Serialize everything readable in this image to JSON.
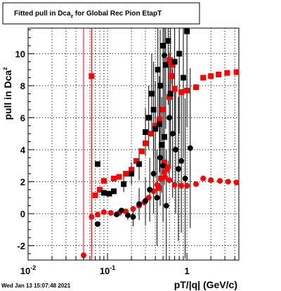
{
  "chart_data": {
    "type": "scatter",
    "title": "Fitted pull in Dca",
    "title_sub": "z",
    "title_rest": " for Global Rec Pion EtapT",
    "xlabel": "pT/|q| (GeV/c)",
    "ylabel": "pull in Dca",
    "ylabel_sub": "z",
    "x_scale": "log",
    "xlim": [
      0.01,
      4.5
    ],
    "ylim": [
      -2.9,
      11.6
    ],
    "x_ticks": [
      {
        "value": 0.01,
        "base": "10",
        "exp": "-2"
      },
      {
        "value": 0.1,
        "base": "10",
        "exp": "-1"
      },
      {
        "value": 1,
        "base": "1",
        "exp": ""
      }
    ],
    "y_ticks": [
      -2,
      0,
      2,
      4,
      6,
      8,
      10
    ],
    "grid": true,
    "date_stamp": "Wed Jan 13 15:07:48 2021",
    "colors": {
      "black_series": "#000000",
      "red_series": "#ff0000",
      "grid": "#000000"
    },
    "series": [
      {
        "marker": "square",
        "color": "#ff0000",
        "points": [
          {
            "x": 0.063,
            "y": 8.6,
            "err": 11
          },
          {
            "x": 0.07,
            "y": 1.15,
            "err": 0
          },
          {
            "x": 0.08,
            "y": 1.5,
            "err": 0
          },
          {
            "x": 0.09,
            "y": 2.05,
            "err": 0
          },
          {
            "x": 0.12,
            "y": 2.2,
            "err": 0
          },
          {
            "x": 0.14,
            "y": 2.3,
            "err": 0
          },
          {
            "x": 0.17,
            "y": 2.5,
            "err": 0
          },
          {
            "x": 0.2,
            "y": 2.75,
            "err": 0
          },
          {
            "x": 0.23,
            "y": 3.3,
            "err": 0
          },
          {
            "x": 0.27,
            "y": 3.9,
            "err": 0
          },
          {
            "x": 0.3,
            "y": 4.4,
            "err": 0
          },
          {
            "x": 0.35,
            "y": 5.0,
            "err": 0
          },
          {
            "x": 0.4,
            "y": 5.5,
            "err": 0
          },
          {
            "x": 0.45,
            "y": 5.9,
            "err": 0
          },
          {
            "x": 0.5,
            "y": 6.5,
            "err": 0
          },
          {
            "x": 0.6,
            "y": 7.3,
            "err": 0
          },
          {
            "x": 0.7,
            "y": 7.8,
            "err": 0
          },
          {
            "x": 0.85,
            "y": 7.6,
            "err": 0
          },
          {
            "x": 1.0,
            "y": 7.7,
            "err": 0
          },
          {
            "x": 1.3,
            "y": 7.9,
            "err": 0
          },
          {
            "x": 1.6,
            "y": 8.5,
            "err": 0
          },
          {
            "x": 2.0,
            "y": 8.6,
            "err": 0
          },
          {
            "x": 2.5,
            "y": 8.7,
            "err": 0
          },
          {
            "x": 3.2,
            "y": 8.8,
            "err": 0
          },
          {
            "x": 4.2,
            "y": 8.85,
            "err": 0
          },
          {
            "x": 0.44,
            "y": 1.6,
            "err": 0
          },
          {
            "x": 0.47,
            "y": 2.2,
            "err": 0
          },
          {
            "x": 0.52,
            "y": 3.2,
            "err": 0
          },
          {
            "x": 0.56,
            "y": 2.8,
            "err": 0
          },
          {
            "x": 0.64,
            "y": 8.6,
            "err": 0.5
          },
          {
            "x": 0.6,
            "y": 9.6,
            "err": 0.5
          },
          {
            "x": 0.66,
            "y": 9.3,
            "err": 0.5
          }
        ]
      },
      {
        "marker": "circle",
        "color": "#ff0000",
        "points": [
          {
            "x": 0.05,
            "y": -2.6,
            "err": 0
          },
          {
            "x": 0.063,
            "y": -0.2,
            "err": 0
          },
          {
            "x": 0.075,
            "y": -0.05,
            "err": 0
          },
          {
            "x": 0.09,
            "y": 0.1,
            "err": 0
          },
          {
            "x": 0.11,
            "y": 0.05,
            "err": 0
          },
          {
            "x": 0.14,
            "y": 0.05,
            "err": 0
          },
          {
            "x": 0.17,
            "y": 0.15,
            "err": 0
          },
          {
            "x": 0.21,
            "y": 0.3,
            "err": 0
          },
          {
            "x": 0.25,
            "y": 0.5,
            "err": 0
          },
          {
            "x": 0.29,
            "y": 0.7,
            "err": 0
          },
          {
            "x": 0.33,
            "y": 1.0,
            "err": 0
          },
          {
            "x": 0.38,
            "y": 1.4,
            "err": 0
          },
          {
            "x": 0.42,
            "y": 1.8,
            "err": 0
          },
          {
            "x": 0.47,
            "y": 2.2,
            "err": 0
          },
          {
            "x": 0.53,
            "y": 2.3,
            "err": 0
          },
          {
            "x": 0.6,
            "y": 2.1,
            "err": 0
          },
          {
            "x": 0.7,
            "y": 1.8,
            "err": 0
          },
          {
            "x": 0.85,
            "y": 1.75,
            "err": 0
          },
          {
            "x": 1.0,
            "y": 1.75,
            "err": 0
          },
          {
            "x": 1.3,
            "y": 1.85,
            "err": 0
          },
          {
            "x": 1.6,
            "y": 2.2,
            "err": 0
          },
          {
            "x": 2.0,
            "y": 2.1,
            "err": 0
          },
          {
            "x": 2.6,
            "y": 2.05,
            "err": 0
          },
          {
            "x": 3.3,
            "y": 2.0,
            "err": 0
          },
          {
            "x": 4.2,
            "y": 1.95,
            "err": 0
          },
          {
            "x": 0.52,
            "y": 2.6,
            "err": 0.4
          },
          {
            "x": 0.58,
            "y": 2.9,
            "err": 0.4
          }
        ]
      },
      {
        "marker": "square",
        "color": "#000000",
        "points": [
          {
            "x": 0.075,
            "y": 3.1,
            "err": 0
          },
          {
            "x": 0.09,
            "y": 1.3,
            "err": 0
          },
          {
            "x": 0.105,
            "y": 1.25,
            "err": 0
          },
          {
            "x": 0.12,
            "y": 1.4,
            "err": 0
          },
          {
            "x": 0.16,
            "y": 1.85,
            "err": 0.5
          },
          {
            "x": 0.2,
            "y": 2.5,
            "err": 0.7
          },
          {
            "x": 0.25,
            "y": 3.1,
            "err": 1.0
          },
          {
            "x": 0.3,
            "y": 5.1,
            "err": 1.5
          },
          {
            "x": 0.33,
            "y": 6.0,
            "err": 2.0
          },
          {
            "x": 0.36,
            "y": 7.5,
            "err": 2.5
          },
          {
            "x": 0.38,
            "y": 6.5,
            "err": 3.0
          },
          {
            "x": 0.4,
            "y": 5.3,
            "err": 3.0
          },
          {
            "x": 0.43,
            "y": 9.0,
            "err": 3.5
          },
          {
            "x": 0.46,
            "y": 8.0,
            "err": 3.5
          },
          {
            "x": 0.5,
            "y": 10.5,
            "err": 4.0
          },
          {
            "x": 0.54,
            "y": 9.3,
            "err": 4.0
          },
          {
            "x": 0.58,
            "y": 10.8,
            "err": 4.0
          },
          {
            "x": 0.62,
            "y": 7.5,
            "err": 4.5
          },
          {
            "x": 0.7,
            "y": 9.5,
            "err": 4.5
          },
          {
            "x": 0.8,
            "y": 10.0,
            "err": 5.0
          },
          {
            "x": 0.9,
            "y": 8.5,
            "err": 5.0
          },
          {
            "x": 1.0,
            "y": 11.4,
            "err": 6.0
          },
          {
            "x": 0.45,
            "y": 5.6,
            "err": 3.0
          },
          {
            "x": 0.48,
            "y": 4.3,
            "err": 3.0
          },
          {
            "x": 0.52,
            "y": 4.8,
            "err": 3.0
          }
        ]
      },
      {
        "marker": "circle",
        "color": "#000000",
        "points": [
          {
            "x": 0.075,
            "y": -0.65,
            "err": 0
          },
          {
            "x": 0.13,
            "y": -0.05,
            "err": 0
          },
          {
            "x": 0.15,
            "y": 0.2,
            "err": 0
          },
          {
            "x": 0.18,
            "y": -0.1,
            "err": 0.3
          },
          {
            "x": 0.21,
            "y": -0.2,
            "err": 0.6
          },
          {
            "x": 0.25,
            "y": 0.6,
            "err": 1.0
          },
          {
            "x": 0.3,
            "y": 0.8,
            "err": 1.5
          },
          {
            "x": 0.34,
            "y": 1.5,
            "err": 2.0
          },
          {
            "x": 0.38,
            "y": 2.5,
            "err": 2.5
          },
          {
            "x": 0.42,
            "y": 1.0,
            "err": 3.0
          },
          {
            "x": 0.46,
            "y": 3.5,
            "err": 3.0
          },
          {
            "x": 0.5,
            "y": 3.0,
            "err": 3.5
          },
          {
            "x": 0.55,
            "y": 0.5,
            "err": 3.5
          },
          {
            "x": 0.6,
            "y": 6.0,
            "err": 4.0
          },
          {
            "x": 0.66,
            "y": 5.0,
            "err": 4.0
          },
          {
            "x": 0.72,
            "y": 4.0,
            "err": 4.0
          },
          {
            "x": 0.78,
            "y": 2.8,
            "err": 4.5
          },
          {
            "x": 0.85,
            "y": 3.3,
            "err": 4.5
          },
          {
            "x": 0.95,
            "y": 2.2,
            "err": 5.0
          },
          {
            "x": 1.1,
            "y": 4.1,
            "err": 5.0
          },
          {
            "x": 0.52,
            "y": 9.9,
            "err": 3.5
          }
        ]
      }
    ],
    "vertical_markers": [
      {
        "x": 0.05,
        "color": "#ff0000"
      },
      {
        "x": 0.063,
        "color": "#ff0000"
      }
    ]
  }
}
